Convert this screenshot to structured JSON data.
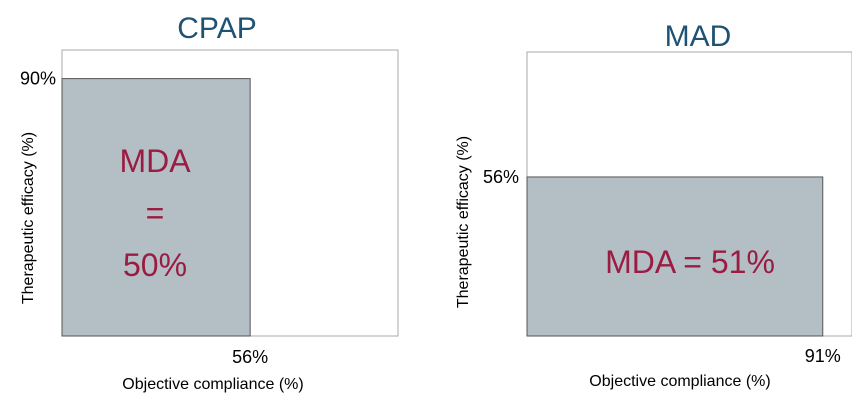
{
  "chart_data": [
    {
      "type": "bar",
      "title": "CPAP",
      "xlabel": "Objective compliance (%)",
      "ylabel": "Therapeutic efficacy (%)",
      "xlim": [
        0,
        100
      ],
      "ylim": [
        0,
        100
      ],
      "x_value": 56,
      "y_value": 90,
      "x_tick_label": "56%",
      "y_tick_label": "90%",
      "annotation_lines": [
        "MDA",
        "=",
        "50%"
      ],
      "bar_color": "#b3bfc4",
      "label_color": "#9b1c42",
      "title_color": "#1f5273"
    },
    {
      "type": "bar",
      "title": "MAD",
      "xlabel": "Objective compliance (%)",
      "ylabel": "Therapeutic efficacy (%)",
      "xlim": [
        0,
        100
      ],
      "ylim": [
        0,
        100
      ],
      "x_value": 91,
      "y_value": 56,
      "x_tick_label": "91%",
      "y_tick_label": "56%",
      "annotation_lines": [
        "MDA = 51%"
      ],
      "bar_color": "#b3bfc4",
      "label_color": "#9b1c42",
      "title_color": "#1f5273"
    }
  ]
}
